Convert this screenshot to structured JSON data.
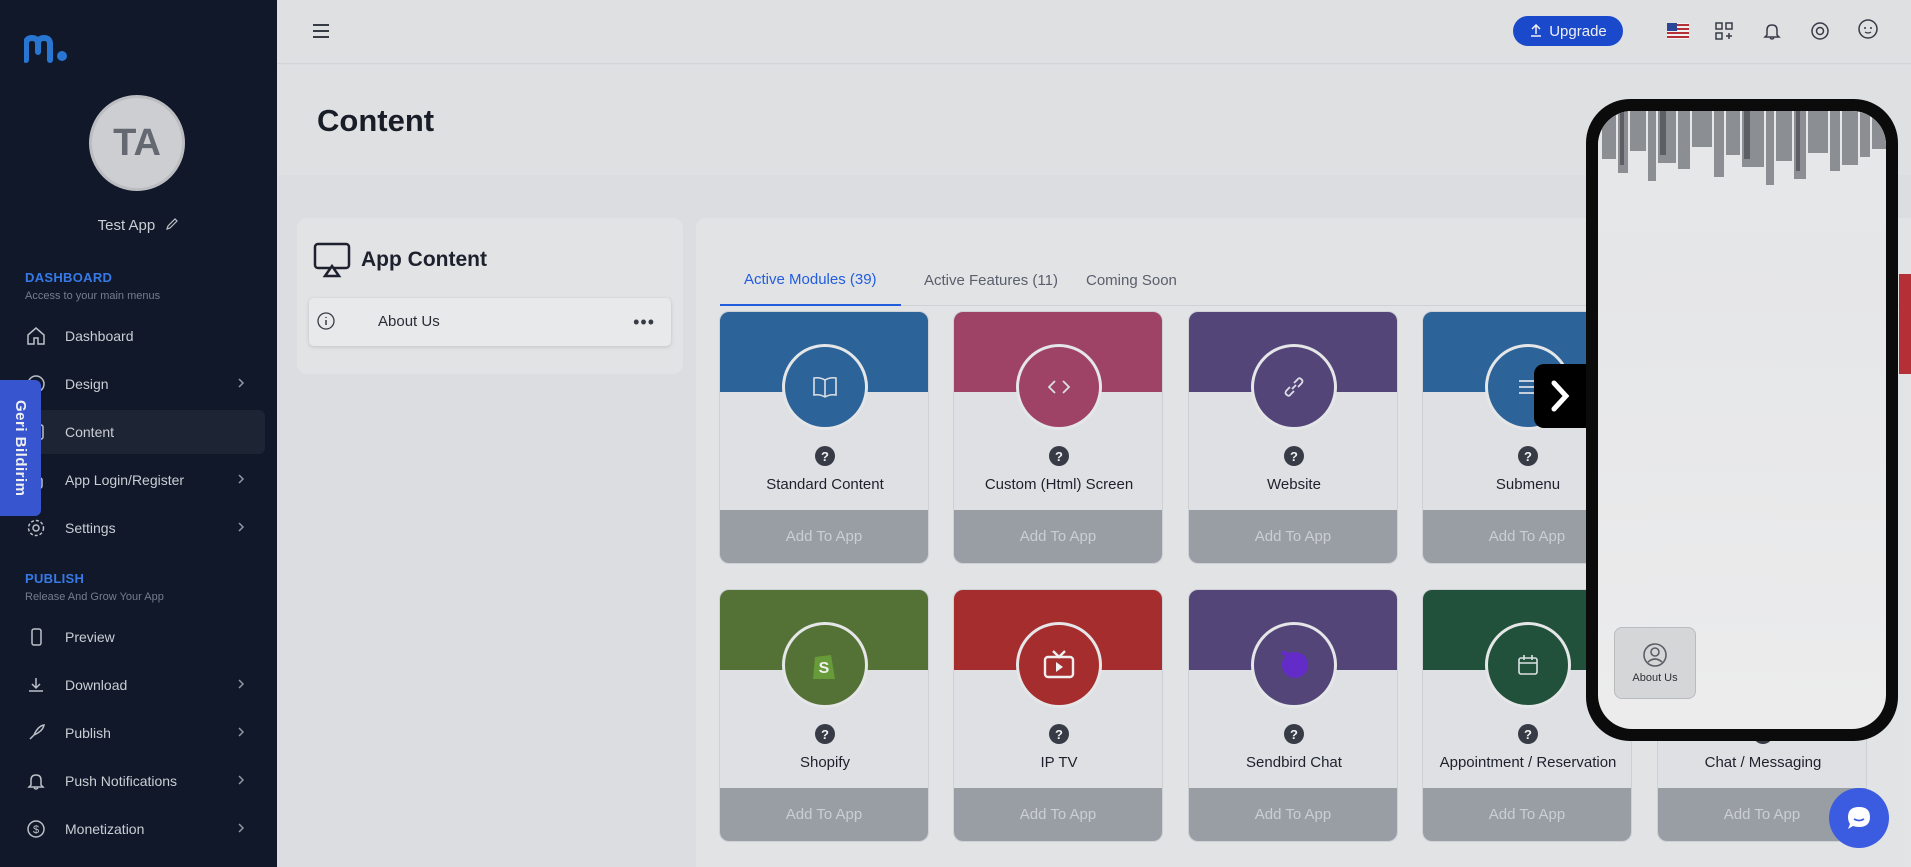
{
  "sidebar": {
    "app_name": "Test App",
    "avatar_initials": "TA",
    "dashboard_section": {
      "title": "DASHBOARD",
      "subtitle": "Access to your main menus"
    },
    "publish_section": {
      "title": "PUBLISH",
      "subtitle": "Release And Grow Your App"
    },
    "items": [
      {
        "label": "Dashboard"
      },
      {
        "label": "Design"
      },
      {
        "label": "Content"
      },
      {
        "label": "App Login/Register"
      },
      {
        "label": "Settings"
      },
      {
        "label": "Preview"
      },
      {
        "label": "Download"
      },
      {
        "label": "Publish"
      },
      {
        "label": "Push Notifications"
      },
      {
        "label": "Monetization"
      }
    ]
  },
  "feedback_tab": "Geri Bildirim",
  "topbar": {
    "upgrade_label": "Upgrade"
  },
  "page": {
    "title": "Content"
  },
  "app_content": {
    "title": "App Content",
    "items": [
      {
        "label": "About Us"
      }
    ]
  },
  "tabs": [
    {
      "label": "Active Modules (39)"
    },
    {
      "label": "Active Features (11)"
    },
    {
      "label": "Coming Soon"
    }
  ],
  "modules": [
    {
      "name": "Standard Content",
      "add": "Add To App",
      "color": "#2f6aa3"
    },
    {
      "name": "Custom (Html) Screen",
      "add": "Add To App",
      "color": "#a8486c"
    },
    {
      "name": "Website",
      "add": "Add To App",
      "color": "#5a4a80"
    },
    {
      "name": "Submenu",
      "add": "Add To App",
      "color": "#2f6aa3"
    },
    {
      "name": "Shopify",
      "add": "Add To App",
      "color": "#5b7a3a"
    },
    {
      "name": "IP TV",
      "add": "Add To App",
      "color": "#b03030"
    },
    {
      "name": "Sendbird Chat",
      "add": "Add To App",
      "color": "#5a4a80"
    },
    {
      "name": "Appointment / Reservation",
      "add": "Add To App",
      "color": "#25573f"
    },
    {
      "name": "Chat / Messaging",
      "add": "Add To App",
      "color": "#25573f"
    }
  ],
  "phone": {
    "tile_label": "About Us"
  }
}
